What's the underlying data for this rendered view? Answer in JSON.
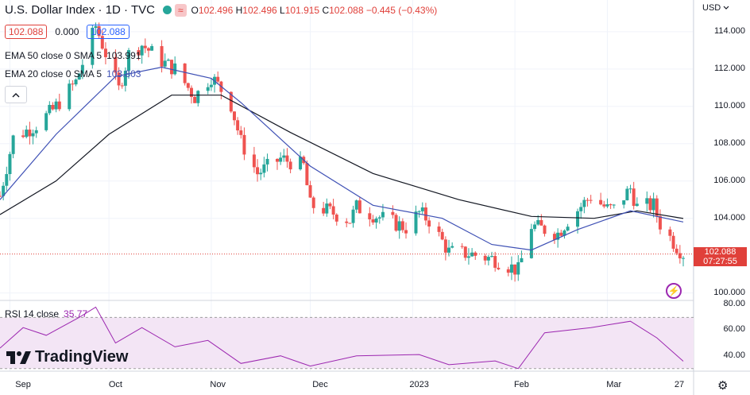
{
  "header": {
    "title": "U.S. Dollar Index · 1D · TVC",
    "wave_icon": "≈",
    "ohlc": {
      "o_label": "O",
      "o": "102.496",
      "h_label": "H",
      "h": "102.496",
      "l_label": "L",
      "l": "101.915",
      "c_label": "C",
      "c": "102.088",
      "change": "−0.445 (−0.43%)"
    }
  },
  "price_row": {
    "bid": "102.088",
    "spread": "0.000",
    "ask": "102.088"
  },
  "indicators": {
    "ema50": {
      "label": "EMA 50 close 0 SMA 5",
      "value": "103.991",
      "color": "#131722"
    },
    "ema20": {
      "label": "EMA 20 close 0 SMA 5",
      "value": "103.803",
      "color": "#3f51b5"
    },
    "rsi": {
      "label": "RSI 14 close",
      "value": "35.77",
      "color": "#9c27b0"
    }
  },
  "axis": {
    "currency": "USD",
    "price_ticks": [
      "114.000",
      "112.000",
      "110.000",
      "108.000",
      "106.000",
      "104.000",
      "100.000"
    ],
    "rsi_ticks": [
      "80.00",
      "60.00",
      "40.00"
    ],
    "x_ticks": [
      "Sep",
      "Oct",
      "Nov",
      "Dec",
      "2023",
      "Feb",
      "Mar",
      "27"
    ]
  },
  "last_price": {
    "value": "102.088",
    "countdown": "07:27:55"
  },
  "brand": "TradingView",
  "colors": {
    "up": "#26a69a",
    "down": "#ef5350",
    "rsi_band": "#f3e5f5"
  },
  "chart_data": {
    "type": "candlestick",
    "title": "U.S. Dollar Index · 1D · TVC",
    "x_range": [
      "2022-08-29",
      "2023-03-24"
    ],
    "ylim": [
      99.6,
      115.7
    ],
    "close_path": [
      [
        "2022-08-29",
        105.2
      ],
      [
        "2022-09-02",
        108.3
      ],
      [
        "2022-09-09",
        109.0
      ],
      [
        "2022-09-14",
        109.8
      ],
      [
        "2022-09-21",
        111.3
      ],
      [
        "2022-09-27",
        114.3
      ],
      [
        "2022-10-04",
        110.9
      ],
      [
        "2022-10-07",
        112.8
      ],
      [
        "2022-10-11",
        113.3
      ],
      [
        "2022-10-18",
        112.3
      ],
      [
        "2022-10-21",
        112.0
      ],
      [
        "2022-10-27",
        110.5
      ],
      [
        "2022-11-01",
        111.6
      ],
      [
        "2022-11-04",
        110.9
      ],
      [
        "2022-11-07",
        110.1
      ],
      [
        "2022-11-10",
        108.1
      ],
      [
        "2022-11-15",
        106.4
      ],
      [
        "2022-11-22",
        107.2
      ],
      [
        "2022-11-29",
        106.8
      ],
      [
        "2022-12-01",
        104.7
      ],
      [
        "2022-12-05",
        104.5
      ],
      [
        "2022-12-13",
        103.9
      ],
      [
        "2022-12-15",
        104.6
      ],
      [
        "2022-12-20",
        104.2
      ],
      [
        "2022-12-30",
        103.5
      ],
      [
        "2023-01-03",
        104.3
      ],
      [
        "2023-01-06",
        103.9
      ],
      [
        "2023-01-12",
        102.2
      ],
      [
        "2023-01-18",
        102.1
      ],
      [
        "2023-01-26",
        101.8
      ],
      [
        "2023-02-02",
        101.2
      ],
      [
        "2023-02-06",
        103.6
      ],
      [
        "2023-02-14",
        103.2
      ],
      [
        "2023-02-17",
        103.9
      ],
      [
        "2023-02-24",
        105.2
      ],
      [
        "2023-03-01",
        104.5
      ],
      [
        "2023-03-03",
        104.5
      ],
      [
        "2023-03-08",
        105.6
      ],
      [
        "2023-03-10",
        104.6
      ],
      [
        "2023-03-15",
        104.7
      ],
      [
        "2023-03-17",
        103.7
      ],
      [
        "2023-03-22",
        102.5
      ],
      [
        "2023-03-24",
        102.1
      ]
    ],
    "ema20_path": [
      [
        "2022-08-29",
        105.0
      ],
      [
        "2022-09-15",
        108.5
      ],
      [
        "2022-10-03",
        111.6
      ],
      [
        "2022-10-17",
        112.1
      ],
      [
        "2022-11-01",
        111.5
      ],
      [
        "2022-11-10",
        110.2
      ],
      [
        "2022-12-01",
        106.8
      ],
      [
        "2022-12-20",
        104.7
      ],
      [
        "2023-01-10",
        104.0
      ],
      [
        "2023-01-25",
        102.6
      ],
      [
        "2023-02-06",
        102.3
      ],
      [
        "2023-02-20",
        103.4
      ],
      [
        "2023-03-08",
        104.4
      ],
      [
        "2023-03-24",
        103.803
      ]
    ],
    "ema50_path": [
      [
        "2022-08-29",
        104.2
      ],
      [
        "2022-09-15",
        106.0
      ],
      [
        "2022-10-01",
        108.5
      ],
      [
        "2022-10-20",
        110.6
      ],
      [
        "2022-11-04",
        110.6
      ],
      [
        "2022-11-25",
        108.6
      ],
      [
        "2022-12-20",
        106.4
      ],
      [
        "2023-01-15",
        105.0
      ],
      [
        "2023-02-06",
        104.1
      ],
      [
        "2023-02-25",
        104.0
      ],
      [
        "2023-03-10",
        104.4
      ],
      [
        "2023-03-24",
        103.991
      ]
    ],
    "rsi_path": [
      [
        "2022-08-29",
        46
      ],
      [
        "2022-09-05",
        62
      ],
      [
        "2022-09-12",
        56
      ],
      [
        "2022-09-22",
        70
      ],
      [
        "2022-09-27",
        78
      ],
      [
        "2022-10-03",
        50
      ],
      [
        "2022-10-11",
        62
      ],
      [
        "2022-10-21",
        47
      ],
      [
        "2022-10-31",
        52
      ],
      [
        "2022-11-10",
        34
      ],
      [
        "2022-11-22",
        40
      ],
      [
        "2022-12-01",
        32
      ],
      [
        "2022-12-15",
        40
      ],
      [
        "2023-01-03",
        41
      ],
      [
        "2023-01-12",
        33
      ],
      [
        "2023-01-26",
        36
      ],
      [
        "2023-02-02",
        30
      ],
      [
        "2023-02-10",
        58
      ],
      [
        "2023-02-24",
        62
      ],
      [
        "2023-03-08",
        67
      ],
      [
        "2023-03-16",
        54
      ],
      [
        "2023-03-24",
        35.77
      ]
    ],
    "rsi_ylim": [
      28,
      82
    ],
    "rsi_bands": [
      30,
      70
    ],
    "last_close": 102.088
  }
}
